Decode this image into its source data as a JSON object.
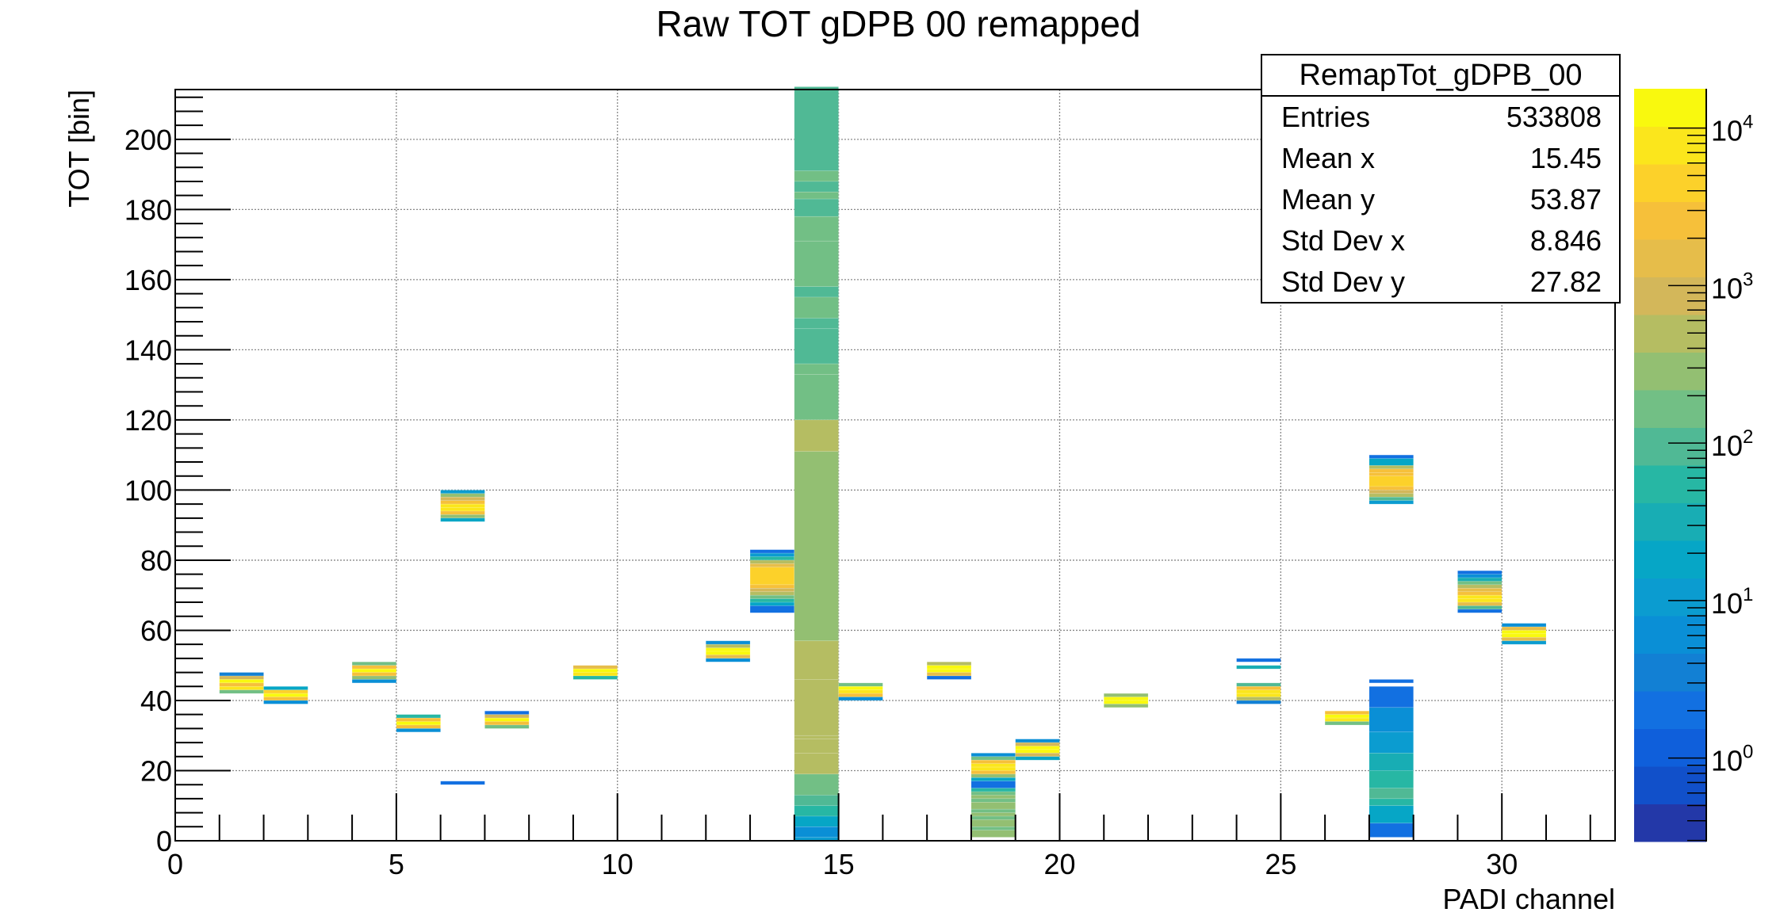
{
  "chart_data": {
    "type": "heatmap",
    "title": "Raw TOT gDPB 00 remapped",
    "xlabel": "PADI channel",
    "ylabel": "TOT [bin]",
    "xlim": [
      0,
      32.56
    ],
    "ylim": [
      0,
      214.2
    ],
    "x_ticks": [
      0,
      5,
      10,
      15,
      20,
      25,
      30
    ],
    "y_ticks": [
      0,
      20,
      40,
      60,
      80,
      100,
      120,
      140,
      160,
      180,
      200
    ],
    "grid": true,
    "z_scale": "log",
    "z_log_range": [
      -0.53,
      4.25
    ],
    "z_ticks": [
      {
        "exp": 0,
        "label_base": "10",
        "label_exp": "0"
      },
      {
        "exp": 1,
        "label_base": "10",
        "label_exp": "1"
      },
      {
        "exp": 2,
        "label_base": "10",
        "label_exp": "2"
      },
      {
        "exp": 3,
        "label_base": "10",
        "label_exp": "3"
      },
      {
        "exp": 4,
        "label_base": "10",
        "label_exp": "4"
      }
    ],
    "palette": [
      "#2338a8",
      "#1150ca",
      "#0f5fdb",
      "#1270e1",
      "#1280d4",
      "#0a8fd6",
      "#0b9cd0",
      "#06a6c6",
      "#18adb4",
      "#27b7a4",
      "#50b995",
      "#72bf85",
      "#93bf72",
      "#b5bd62",
      "#d3b75a",
      "#e6bd4a",
      "#f6c03a",
      "#fcd12a",
      "#fbe61c",
      "#f9f90e"
    ],
    "bin_note": "each cell: [channel, tot_from, tot_to, log10(count)] - channel bin spans [channel, channel+1), TOT bins are 1 wide",
    "cells": [
      [
        1,
        47,
        47,
        0.6
      ],
      [
        1,
        46,
        46,
        2.95
      ],
      [
        1,
        45,
        45,
        4.1
      ],
      [
        1,
        44,
        44,
        3.5
      ],
      [
        1,
        43,
        43,
        3.9
      ],
      [
        1,
        42,
        42,
        2.2
      ],
      [
        2,
        43,
        43,
        1.3
      ],
      [
        2,
        42,
        42,
        3.55
      ],
      [
        2,
        41,
        41,
        4.1
      ],
      [
        2,
        40,
        40,
        3.4
      ],
      [
        2,
        39,
        39,
        0.9
      ],
      [
        4,
        50,
        50,
        2.2
      ],
      [
        4,
        49,
        49,
        3.5
      ],
      [
        4,
        48,
        48,
        4.1
      ],
      [
        4,
        47,
        47,
        3.5
      ],
      [
        4,
        46,
        46,
        2.5
      ],
      [
        4,
        45,
        45,
        0.7
      ],
      [
        5,
        35,
        35,
        1.8
      ],
      [
        5,
        34,
        34,
        3.5
      ],
      [
        5,
        33,
        33,
        4.1
      ],
      [
        5,
        32,
        32,
        3.3
      ],
      [
        5,
        31,
        31,
        0.8
      ],
      [
        6,
        99,
        99,
        1.1
      ],
      [
        6,
        98,
        98,
        2.5
      ],
      [
        6,
        97,
        97,
        3.0
      ],
      [
        6,
        96,
        96,
        3.4
      ],
      [
        6,
        95,
        95,
        4.0
      ],
      [
        6,
        94,
        94,
        3.9
      ],
      [
        6,
        93,
        93,
        3.3
      ],
      [
        6,
        92,
        92,
        2.4
      ],
      [
        6,
        91,
        91,
        1.2
      ],
      [
        6,
        16,
        16,
        0.3
      ],
      [
        7,
        36,
        36,
        0.3
      ],
      [
        7,
        35,
        35,
        3.0
      ],
      [
        7,
        34,
        34,
        4.1
      ],
      [
        7,
        33,
        33,
        3.5
      ],
      [
        7,
        32,
        32,
        2.3
      ],
      [
        9,
        49,
        49,
        3.1
      ],
      [
        9,
        48,
        48,
        4.1
      ],
      [
        9,
        47,
        47,
        3.9
      ],
      [
        9,
        46,
        46,
        1.8
      ],
      [
        12,
        56,
        56,
        0.8
      ],
      [
        12,
        55,
        55,
        2.7
      ],
      [
        12,
        54,
        54,
        4.1
      ],
      [
        12,
        53,
        53,
        4.1
      ],
      [
        12,
        52,
        52,
        3.1
      ],
      [
        12,
        51,
        51,
        0.9
      ],
      [
        13,
        82,
        82,
        0.3
      ],
      [
        13,
        81,
        81,
        1.0
      ],
      [
        13,
        80,
        80,
        1.8
      ],
      [
        13,
        79,
        79,
        2.7
      ],
      [
        13,
        78,
        78,
        3.1
      ],
      [
        13,
        77,
        73,
        3.6
      ],
      [
        13,
        72,
        72,
        3.4
      ],
      [
        13,
        71,
        71,
        3.0
      ],
      [
        13,
        70,
        70,
        2.7
      ],
      [
        13,
        69,
        69,
        2.3
      ],
      [
        13,
        68,
        68,
        1.8
      ],
      [
        13,
        67,
        67,
        1.2
      ],
      [
        13,
        66,
        65,
        0.3
      ],
      [
        14,
        214,
        191,
        2.0
      ],
      [
        14,
        190,
        188,
        2.3
      ],
      [
        14,
        187,
        185,
        2.0
      ],
      [
        14,
        184,
        183,
        2.3
      ],
      [
        14,
        182,
        178,
        2.0
      ],
      [
        14,
        177,
        171,
        2.3
      ],
      [
        14,
        170,
        158,
        2.2
      ],
      [
        14,
        157,
        155,
        2.0
      ],
      [
        14,
        154,
        149,
        2.2
      ],
      [
        14,
        148,
        146,
        2.0
      ],
      [
        14,
        145,
        136,
        2.0
      ],
      [
        14,
        135,
        133,
        2.3
      ],
      [
        14,
        132,
        120,
        2.3
      ],
      [
        14,
        119,
        111,
        2.6
      ],
      [
        14,
        110,
        57,
        2.55
      ],
      [
        14,
        56,
        46,
        2.6
      ],
      [
        14,
        45,
        30,
        2.8
      ],
      [
        14,
        29,
        29,
        2.6
      ],
      [
        14,
        28,
        25,
        2.8
      ],
      [
        14,
        24,
        19,
        2.6
      ],
      [
        14,
        18,
        13,
        2.3
      ],
      [
        14,
        12,
        10,
        2.0
      ],
      [
        14,
        9,
        7,
        1.7
      ],
      [
        14,
        6,
        4,
        1.2
      ],
      [
        14,
        3,
        1,
        0.7
      ],
      [
        14,
        0,
        0,
        1.1
      ],
      [
        15,
        44,
        44,
        2.2
      ],
      [
        15,
        43,
        43,
        4.1
      ],
      [
        15,
        42,
        42,
        4.0
      ],
      [
        15,
        41,
        41,
        3.5
      ],
      [
        15,
        40,
        40,
        0.8
      ],
      [
        17,
        50,
        50,
        2.8
      ],
      [
        17,
        49,
        49,
        4.1
      ],
      [
        17,
        48,
        48,
        4.1
      ],
      [
        17,
        47,
        47,
        3.1
      ],
      [
        17,
        46,
        46,
        0.3
      ],
      [
        18,
        24,
        24,
        0.8
      ],
      [
        18,
        23,
        23,
        2.3
      ],
      [
        18,
        22,
        22,
        3.5
      ],
      [
        18,
        21,
        21,
        4.0
      ],
      [
        18,
        20,
        20,
        3.9
      ],
      [
        18,
        19,
        19,
        3.4
      ],
      [
        18,
        18,
        18,
        2.5
      ],
      [
        18,
        17,
        17,
        1.2
      ],
      [
        18,
        16,
        15,
        0.3
      ],
      [
        18,
        14,
        14,
        1.8
      ],
      [
        18,
        13,
        13,
        2.3
      ],
      [
        18,
        12,
        12,
        2.5
      ],
      [
        18,
        11,
        11,
        2.3
      ],
      [
        18,
        10,
        9,
        2.5
      ],
      [
        18,
        8,
        8,
        2.3
      ],
      [
        18,
        7,
        7,
        2.5
      ],
      [
        18,
        6,
        6,
        2.3
      ],
      [
        18,
        5,
        4,
        2.5
      ],
      [
        18,
        3,
        3,
        2.3
      ],
      [
        18,
        2,
        1,
        2.5
      ],
      [
        19,
        28,
        28,
        0.8
      ],
      [
        19,
        27,
        27,
        3.0
      ],
      [
        19,
        26,
        26,
        4.1
      ],
      [
        19,
        25,
        25,
        4.1
      ],
      [
        19,
        24,
        24,
        3.0
      ],
      [
        19,
        23,
        23,
        1.3
      ],
      [
        21,
        41,
        41,
        2.5
      ],
      [
        21,
        40,
        40,
        4.1
      ],
      [
        21,
        39,
        39,
        4.1
      ],
      [
        21,
        38,
        38,
        2.5
      ],
      [
        24,
        51,
        51,
        0.3
      ],
      [
        24,
        49,
        49,
        1.4
      ],
      [
        24,
        44,
        44,
        2.0
      ],
      [
        24,
        43,
        43,
        3.5
      ],
      [
        24,
        42,
        42,
        4.0
      ],
      [
        24,
        41,
        41,
        3.9
      ],
      [
        24,
        40,
        40,
        2.8
      ],
      [
        24,
        39,
        39,
        0.6
      ],
      [
        26,
        36,
        36,
        3.5
      ],
      [
        26,
        35,
        35,
        4.1
      ],
      [
        26,
        34,
        34,
        3.9
      ],
      [
        26,
        33,
        33,
        2.3
      ],
      [
        27,
        109,
        109,
        0.3
      ],
      [
        27,
        108,
        107,
        1.3
      ],
      [
        27,
        106,
        106,
        2.7
      ],
      [
        27,
        105,
        105,
        3.4
      ],
      [
        27,
        104,
        104,
        3.5
      ],
      [
        27,
        103,
        101,
        3.7
      ],
      [
        27,
        100,
        100,
        3.4
      ],
      [
        27,
        99,
        99,
        3.0
      ],
      [
        27,
        98,
        98,
        2.6
      ],
      [
        27,
        97,
        97,
        2.0
      ],
      [
        27,
        96,
        96,
        1.0
      ],
      [
        27,
        45,
        45,
        0.3
      ],
      [
        27,
        43,
        38,
        0.3
      ],
      [
        27,
        37,
        31,
        0.7
      ],
      [
        27,
        30,
        25,
        1.1
      ],
      [
        27,
        24,
        20,
        1.6
      ],
      [
        27,
        19,
        15,
        1.8
      ],
      [
        27,
        14,
        12,
        2.0
      ],
      [
        27,
        11,
        10,
        1.7
      ],
      [
        27,
        9,
        5,
        1.3
      ],
      [
        27,
        4,
        1,
        0.3
      ],
      [
        29,
        76,
        76,
        0.3
      ],
      [
        29,
        75,
        75,
        0.8
      ],
      [
        29,
        74,
        74,
        1.6
      ],
      [
        29,
        73,
        73,
        2.2
      ],
      [
        29,
        72,
        72,
        2.7
      ],
      [
        29,
        71,
        71,
        3.1
      ],
      [
        29,
        70,
        70,
        3.4
      ],
      [
        29,
        69,
        69,
        4.0
      ],
      [
        29,
        68,
        68,
        4.0
      ],
      [
        29,
        67,
        67,
        3.1
      ],
      [
        29,
        66,
        66,
        2.0
      ],
      [
        29,
        65,
        65,
        0.3
      ],
      [
        30,
        61,
        61,
        0.9
      ],
      [
        30,
        60,
        60,
        3.1
      ],
      [
        30,
        59,
        59,
        4.1
      ],
      [
        30,
        58,
        58,
        4.1
      ],
      [
        30,
        57,
        57,
        3.1
      ],
      [
        30,
        56,
        56,
        1.0
      ]
    ]
  },
  "stats": {
    "name": "RemapTot_gDPB_00",
    "rows": [
      {
        "label": "Entries",
        "value": "533808"
      },
      {
        "label": "Mean x",
        "value": "15.45"
      },
      {
        "label": "Mean y",
        "value": "53.87"
      },
      {
        "label": "Std Dev x",
        "value": "8.846"
      },
      {
        "label": "Std Dev y",
        "value": "27.82"
      }
    ]
  }
}
